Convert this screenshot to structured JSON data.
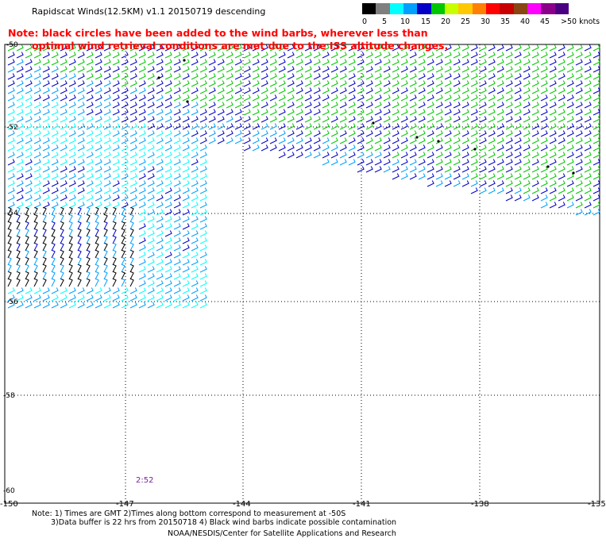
{
  "header": {
    "title": "Rapidscat Winds(12.5KM) v1.1 20150719 descending",
    "note_line1": "Note: black circles have been added to the wind barbs, wherever less than",
    "note_line2": "optimal wind retrieval conditions are met due to the ISS altitude changes."
  },
  "legend": {
    "labels": [
      "0",
      "5",
      "10",
      "15",
      "20",
      "25",
      "30",
      "35",
      "40",
      "45",
      ">50 knots"
    ],
    "colors": [
      "#000000",
      "#7f7f7f",
      "#00ffff",
      "#00a0ff",
      "#0000c8",
      "#00c800",
      "#c8ff00",
      "#ffc800",
      "#ff7f00",
      "#ff0000",
      "#c80000",
      "#8b4513",
      "#ff00ff",
      "#8b008b",
      "#4b0082"
    ]
  },
  "map": {
    "lat_labels": [
      "-50",
      "-52",
      "-54",
      "-56",
      "-58",
      "-60"
    ],
    "lon_labels": [
      "-150",
      "-147",
      "-144",
      "-141",
      "-138",
      "-135"
    ],
    "timestamp": "2:52"
  },
  "footer": {
    "note1": "Note: 1) Times are GMT 2)Times along bottom correspond to measurement at -50S",
    "note2": "3)Data buffer is 22 hrs from 20150718 4) Black wind barbs indicate possible contamination",
    "credit": "NOAA/NESDIS/Center for Satellite Applications and Research"
  }
}
